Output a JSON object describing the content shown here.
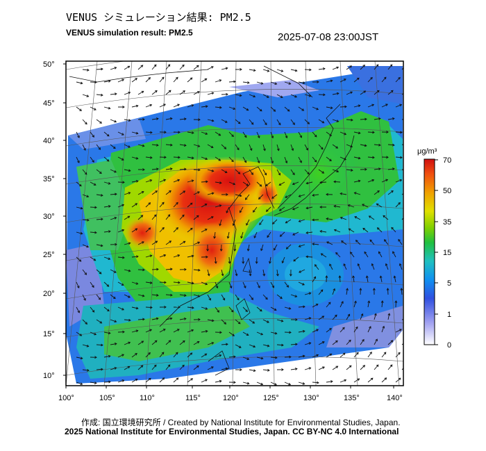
{
  "header": {
    "title_ja": "VENUS シミュレーション結果: PM2.5",
    "title_en": "VENUS simulation result: PM2.5",
    "timestamp": "2025-07-08 23:00JST"
  },
  "footer": {
    "credit": "作成: 国立環境研究所 / Created by National Institute for Environmental Studies, Japan.",
    "license": "2025 National Institute for Environmental Studies, Japan. CC BY-NC 4.0 International"
  },
  "map": {
    "lat_ticks": [
      "50°",
      "45°",
      "40°",
      "35°",
      "30°",
      "25°",
      "20°",
      "15°",
      "10°"
    ],
    "lon_ticks": [
      "100°",
      "105°",
      "110°",
      "115°",
      "120°",
      "125°",
      "130°",
      "135°",
      "140°"
    ],
    "lon_range": [
      100,
      142
    ],
    "lat_range": [
      9,
      51
    ],
    "features": [
      "PM2.5 concentration field",
      "wind vectors",
      "coastlines",
      "lat/lon graticule",
      "typhoon circulation near 23°N 129°E"
    ]
  },
  "colorbar": {
    "unit": "μg/m³",
    "tick_labels": [
      "70",
      "50",
      "35",
      "15",
      "5",
      "1",
      "0"
    ],
    "colors": [
      "#e01010",
      "#f05010",
      "#f0a000",
      "#e0e000",
      "#20c000",
      "#20c0a0",
      "#2060e0",
      "#8080e0",
      "#ffffff"
    ]
  }
}
